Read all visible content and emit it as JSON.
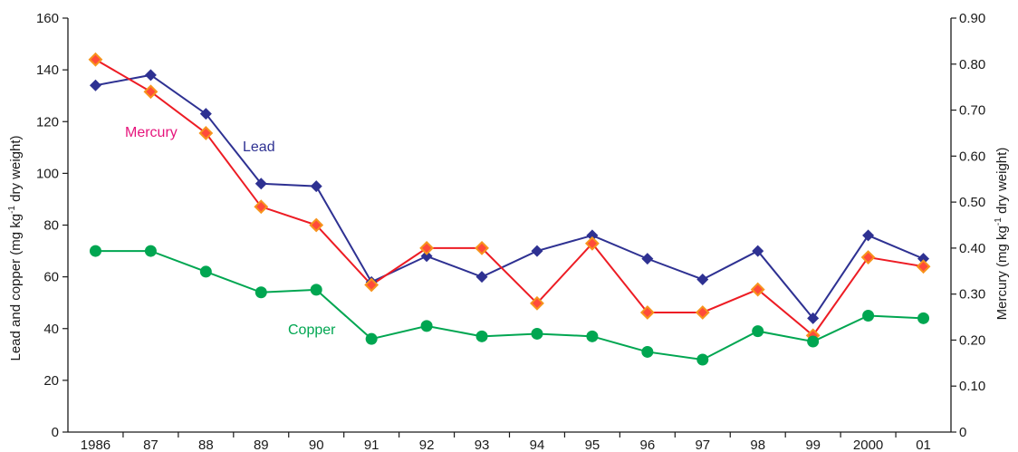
{
  "chart_data": {
    "type": "line",
    "x_categories": [
      "1986",
      "87",
      "88",
      "89",
      "90",
      "91",
      "92",
      "93",
      "94",
      "95",
      "96",
      "97",
      "98",
      "99",
      "2000",
      "01"
    ],
    "left_axis": {
      "label": "Lead and copper (mg kg",
      "label_superscript": "-1",
      "label_suffix": " dry weight)",
      "ylim": [
        0,
        160
      ],
      "ticks": [
        0,
        20,
        40,
        60,
        80,
        100,
        120,
        140,
        160
      ]
    },
    "right_axis": {
      "label": "Mercury (mg kg",
      "label_superscript": "-1",
      "label_suffix": " dry weight)",
      "ylim": [
        0,
        0.9
      ],
      "ticks": [
        "0",
        "0.10",
        "0.20",
        "0.30",
        "0.40",
        "0.50",
        "0.60",
        "0.70",
        "0.80",
        "0.90"
      ]
    },
    "series": [
      {
        "name": "Lead",
        "axis": "left",
        "color": "#2e3192",
        "marker": "diamond",
        "values": [
          134,
          138,
          123,
          96,
          95,
          58,
          68,
          60,
          70,
          76,
          67,
          59,
          70,
          44,
          76,
          67
        ]
      },
      {
        "name": "Mercury",
        "axis": "right",
        "color": "#ed1c24",
        "label_color": "#e6157c",
        "marker": "diamond-outlined",
        "values": [
          0.81,
          0.74,
          0.65,
          0.49,
          0.45,
          0.32,
          0.4,
          0.4,
          0.28,
          0.41,
          0.26,
          0.26,
          0.31,
          0.21,
          0.38,
          0.36
        ]
      },
      {
        "name": "Copper",
        "axis": "left",
        "color": "#00a651",
        "marker": "circle",
        "values": [
          70,
          70,
          62,
          54,
          55,
          36,
          41,
          37,
          38,
          37,
          31,
          28,
          39,
          35,
          45,
          44
        ]
      }
    ],
    "grid": false,
    "legend": "inline labels"
  }
}
